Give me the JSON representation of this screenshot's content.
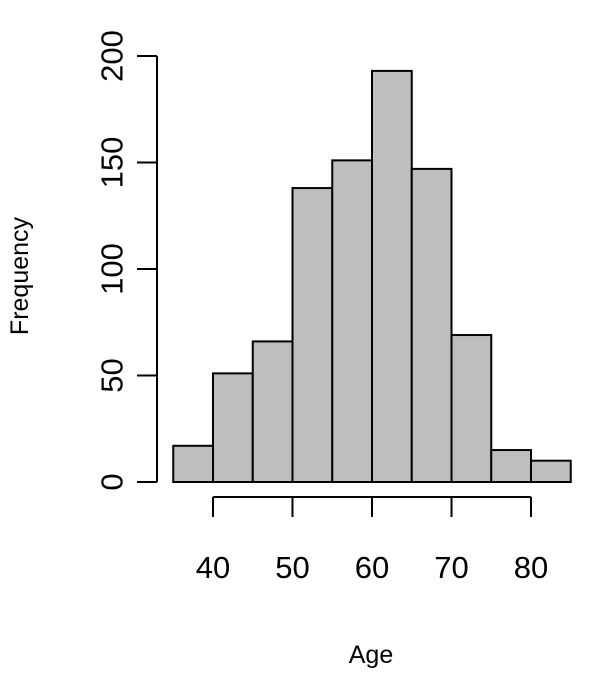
{
  "chart_data": {
    "type": "bar",
    "subtype": "histogram",
    "title": "",
    "xlabel": "Age",
    "ylabel": "Frequency",
    "bins": [
      {
        "start": 35,
        "end": 40,
        "count": 17
      },
      {
        "start": 40,
        "end": 45,
        "count": 51
      },
      {
        "start": 45,
        "end": 50,
        "count": 66
      },
      {
        "start": 50,
        "end": 55,
        "count": 138
      },
      {
        "start": 55,
        "end": 60,
        "count": 151
      },
      {
        "start": 60,
        "end": 65,
        "count": 193
      },
      {
        "start": 65,
        "end": 70,
        "count": 147
      },
      {
        "start": 70,
        "end": 75,
        "count": 69
      },
      {
        "start": 75,
        "end": 80,
        "count": 15
      },
      {
        "start": 80,
        "end": 85,
        "count": 10
      }
    ],
    "xlim": [
      35,
      85
    ],
    "ylim": [
      0,
      200
    ],
    "x_ticks": [
      40,
      50,
      60,
      70,
      80
    ],
    "y_ticks": [
      0,
      50,
      100,
      150,
      200
    ],
    "bar_fill": "#bebebe",
    "bar_stroke": "#000000",
    "grid": false
  }
}
